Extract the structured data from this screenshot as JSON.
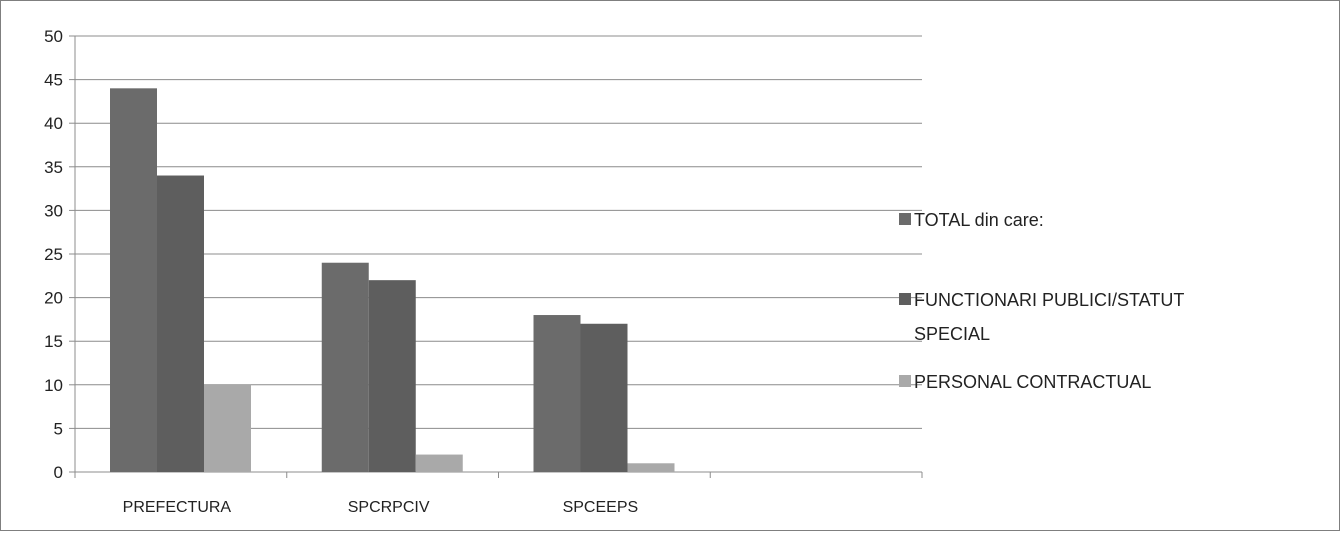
{
  "chart_data": {
    "type": "bar",
    "title": "",
    "xlabel": "",
    "ylabel": "",
    "ylim": [
      0,
      50
    ],
    "yticks": [
      0,
      5,
      10,
      15,
      20,
      25,
      30,
      35,
      40,
      45,
      50
    ],
    "grid": true,
    "legend_position": "right",
    "categories": [
      "PREFECTURA",
      "SPCRPCIV",
      "SPCEEPS",
      ""
    ],
    "series": [
      {
        "name": "TOTAL din care:",
        "values": [
          44,
          24,
          18,
          null
        ],
        "color": "#6b6b6b"
      },
      {
        "name": "FUNCTIONARI PUBLICI/STATUT SPECIAL",
        "values": [
          34,
          22,
          17,
          null
        ],
        "color": "#5e5e5e"
      },
      {
        "name": "PERSONAL CONTRACTUAL",
        "values": [
          10,
          2,
          1,
          null
        ],
        "color": "#a9a9a9"
      }
    ]
  }
}
